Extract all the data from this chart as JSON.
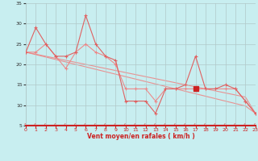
{
  "x": [
    0,
    1,
    2,
    3,
    4,
    5,
    6,
    7,
    8,
    9,
    10,
    11,
    12,
    13,
    14,
    15,
    16,
    17,
    18,
    19,
    20,
    21,
    22,
    23
  ],
  "line1_jagged": [
    23,
    29,
    25,
    22,
    22,
    23,
    32,
    25,
    22,
    21,
    11,
    11,
    11,
    8,
    14,
    14,
    15,
    22,
    14,
    14,
    15,
    14,
    11,
    8
  ],
  "line2_jagged": [
    23,
    23,
    25,
    22,
    19,
    23,
    25,
    23,
    22,
    20,
    14,
    14,
    14,
    11,
    14,
    14,
    14,
    14,
    14,
    14,
    14,
    14,
    11,
    8
  ],
  "trend1": [
    23,
    22.4,
    21.8,
    21.2,
    20.6,
    20.0,
    19.4,
    18.8,
    18.2,
    17.6,
    17.0,
    16.4,
    15.8,
    15.2,
    14.6,
    14.0,
    13.4,
    12.8,
    12.2,
    11.6,
    11.0,
    10.4,
    9.8,
    8
  ],
  "trend2": [
    23,
    22.5,
    22.0,
    21.5,
    21.0,
    20.5,
    20.0,
    19.5,
    19.0,
    18.5,
    18.0,
    17.5,
    17.0,
    16.5,
    16.0,
    15.5,
    15.0,
    14.5,
    14.0,
    13.5,
    13.0,
    12.5,
    12.0,
    8
  ],
  "special_point_x": 17,
  "special_point_y": 14,
  "bg_color": "#c8eef0",
  "grid_color": "#b0c8c8",
  "line_color": "#f08080",
  "line_color2": "#e06060",
  "xlabel": "Vent moyen/en rafales ( km/h )",
  "xlim": [
    0,
    23
  ],
  "ylim": [
    5,
    35
  ],
  "yticks": [
    5,
    10,
    15,
    20,
    25,
    30,
    35
  ],
  "xticks": [
    0,
    1,
    2,
    3,
    4,
    5,
    6,
    7,
    8,
    9,
    10,
    11,
    12,
    13,
    14,
    15,
    16,
    17,
    18,
    19,
    20,
    21,
    22,
    23
  ]
}
